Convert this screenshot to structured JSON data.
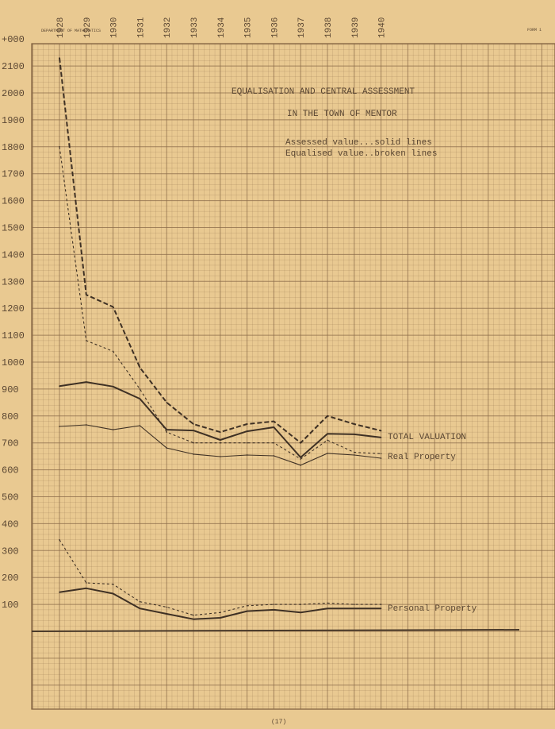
{
  "stamp": "DEPARTMENT OF MATHEMATICS",
  "form_label": "FORM 1",
  "page_number": "(17)",
  "chart_data": {
    "type": "line",
    "title": "EQUALISATION AND CENTRAL ASSESSMENT",
    "subtitle": "IN THE TOWN OF MENTOR",
    "legend": [
      "Assessed value...solid lines",
      "Equalised value..broken lines"
    ],
    "legend_placement": "top-right",
    "grid": true,
    "colors": {
      "paper": "#e9c991",
      "grid": "#8a6a48",
      "ink": "#4a3a2a"
    },
    "x": [
      1928,
      1929,
      1930,
      1931,
      1932,
      1933,
      1934,
      1935,
      1936,
      1937,
      1938,
      1939,
      1940
    ],
    "x_tick_labels": [
      "1928",
      "1929",
      "1930",
      "1931",
      "1932",
      "1933",
      "1934",
      "1935",
      "1936",
      "1937",
      "1938",
      "1939",
      "1940"
    ],
    "ylim": [
      0,
      2200
    ],
    "y_tick_labels": [
      "100",
      "200",
      "300",
      "400",
      "500",
      "600",
      "700",
      "800",
      "900",
      "1000",
      "1100",
      "1200",
      "1300",
      "1400",
      "1500",
      "1600",
      "1700",
      "1800",
      "1900",
      "2000",
      "2100",
      "+000"
    ],
    "series": [
      {
        "name": "TOTAL VALUATION",
        "kind": "assessed",
        "style": "solid",
        "weight": "heavy",
        "values": [
          911,
          926,
          909,
          864,
          749,
          746,
          711,
          743,
          758,
          646,
          734,
          732,
          720
        ]
      },
      {
        "name": "TOTAL VALUATION",
        "kind": "equalised",
        "style": "dashed",
        "weight": "heavy",
        "values": [
          2130,
          1250,
          1205,
          980,
          850,
          770,
          740,
          770,
          780,
          700,
          800,
          770,
          745
        ]
      },
      {
        "name": "Real Property",
        "kind": "assessed",
        "style": "solid",
        "weight": "light",
        "values": [
          761,
          767,
          749,
          764,
          681,
          658,
          649,
          655,
          652,
          617,
          661,
          655,
          643
        ]
      },
      {
        "name": "Real Property",
        "kind": "equalised",
        "style": "dashed",
        "weight": "light",
        "values": [
          1800,
          1080,
          1040,
          900,
          740,
          700,
          700,
          700,
          700,
          640,
          710,
          665,
          660
        ]
      },
      {
        "name": "Personal Property",
        "kind": "assessed",
        "style": "solid",
        "weight": "heavy",
        "values": [
          145,
          160,
          140,
          85,
          65,
          45,
          50,
          75,
          80,
          70,
          85,
          85,
          85
        ]
      },
      {
        "name": "Personal Property",
        "kind": "equalised",
        "style": "dashed",
        "weight": "light",
        "values": [
          340,
          180,
          175,
          110,
          90,
          60,
          70,
          95,
          100,
          100,
          105,
          100,
          100
        ]
      }
    ],
    "series_labels": [
      "TOTAL VALUATION",
      "Real Property",
      "Personal Property"
    ]
  }
}
